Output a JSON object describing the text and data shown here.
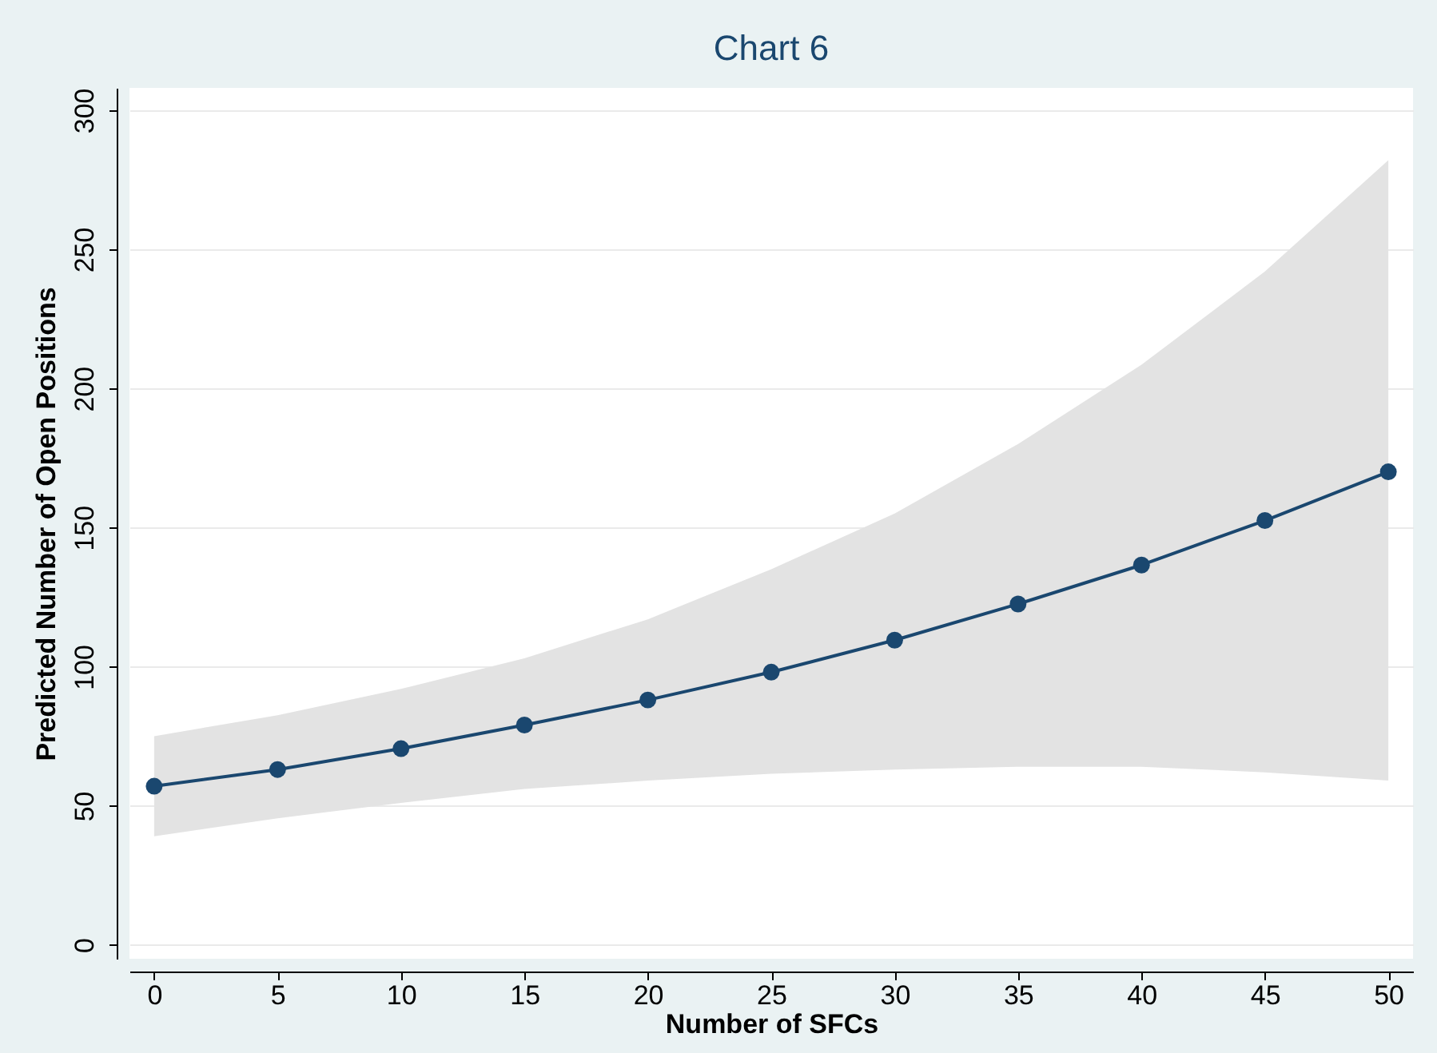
{
  "chart_data": {
    "type": "line",
    "title": "Chart 6",
    "xlabel": "Number of SFCs",
    "ylabel": "Predicted Number of Open Positions",
    "x": [
      0,
      5,
      10,
      15,
      20,
      25,
      30,
      35,
      40,
      45,
      50
    ],
    "series": [
      {
        "color": "#1a476f",
        "values": [
          57,
          63,
          70.5,
          79,
          88,
          98,
          109.5,
          122.5,
          136.5,
          152.5,
          170
        ],
        "lower": [
          39,
          45.5,
          51,
          56,
          59,
          61.5,
          63,
          64,
          64,
          62,
          59
        ],
        "upper": [
          75,
          82.5,
          92,
          103,
          117,
          135,
          155,
          180,
          208.5,
          242,
          282
        ]
      }
    ],
    "xlim": [
      -1,
      51
    ],
    "xticks": [
      0,
      5,
      10,
      15,
      20,
      25,
      30,
      35,
      40,
      45,
      50
    ],
    "ylim": [
      -5,
      308
    ],
    "yticks": [
      0,
      50,
      100,
      150,
      200,
      250,
      300
    ],
    "grid": "y",
    "marker": "circle",
    "line_style": "solid"
  }
}
